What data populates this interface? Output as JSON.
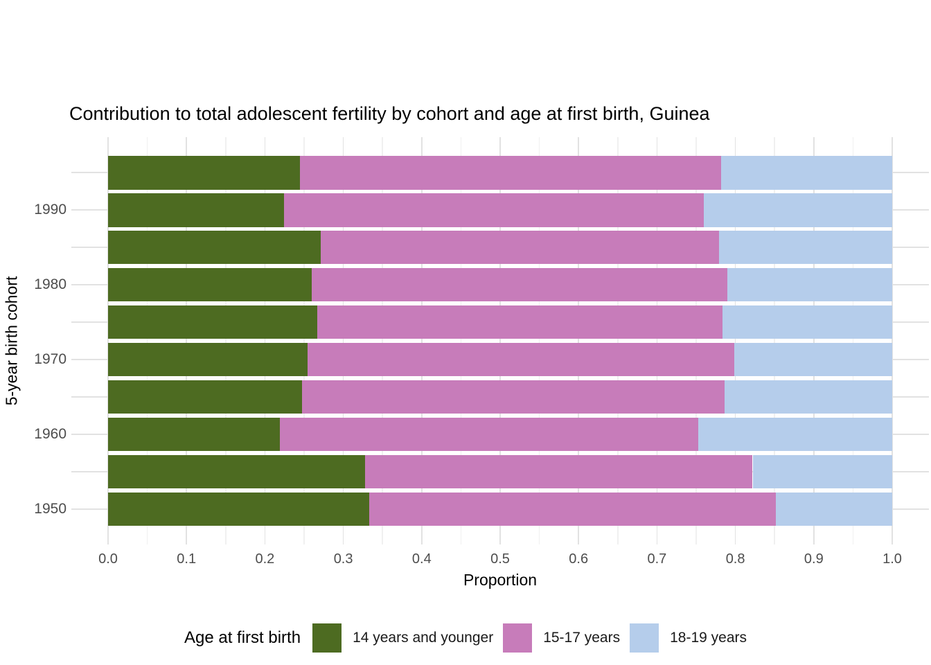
{
  "title": "Contribution to total adolescent fertility by cohort and age at first birth,  Guinea",
  "chart_data": {
    "type": "bar",
    "orientation": "horizontal",
    "stacked": true,
    "title": "Contribution to total adolescent fertility by cohort and age at first birth,  Guinea",
    "xlabel": "Proportion",
    "ylabel": "5-year birth cohort",
    "xlim": [
      0,
      1
    ],
    "x_tick_labels": [
      "0.0",
      "0.1",
      "0.2",
      "0.3",
      "0.4",
      "0.5",
      "0.6",
      "0.7",
      "0.8",
      "0.9",
      "1.0"
    ],
    "x_minor_gridlines_every": 0.05,
    "grid": true,
    "n_bars": 10,
    "bar_order": "top_to_bottom",
    "y_ticks": [
      {
        "row": 1,
        "label": "1990"
      },
      {
        "row": 3,
        "label": "1980"
      },
      {
        "row": 5,
        "label": "1970"
      },
      {
        "row": 7,
        "label": "1960"
      },
      {
        "row": 9,
        "label": "1950"
      }
    ],
    "series": [
      {
        "name": "14 years and younger",
        "color": "#4d6b21",
        "values": [
          0.245,
          0.224,
          0.271,
          0.26,
          0.267,
          0.254,
          0.247,
          0.219,
          0.328,
          0.333
        ]
      },
      {
        "name": "15-17 years",
        "color": "#c77cba",
        "values": [
          0.537,
          0.536,
          0.508,
          0.53,
          0.517,
          0.545,
          0.539,
          0.534,
          0.494,
          0.519
        ]
      },
      {
        "name": "18-19 years",
        "color": "#b5cdeb",
        "values": [
          0.218,
          0.24,
          0.221,
          0.21,
          0.216,
          0.201,
          0.214,
          0.247,
          0.178,
          0.148
        ]
      }
    ],
    "legend": {
      "title": "Age at first birth",
      "position": "bottom"
    },
    "colors": {
      "grid_major": "#e2e2e2",
      "grid_minor": "#f0f0f0",
      "tick_text": "#4d4d4d"
    }
  }
}
